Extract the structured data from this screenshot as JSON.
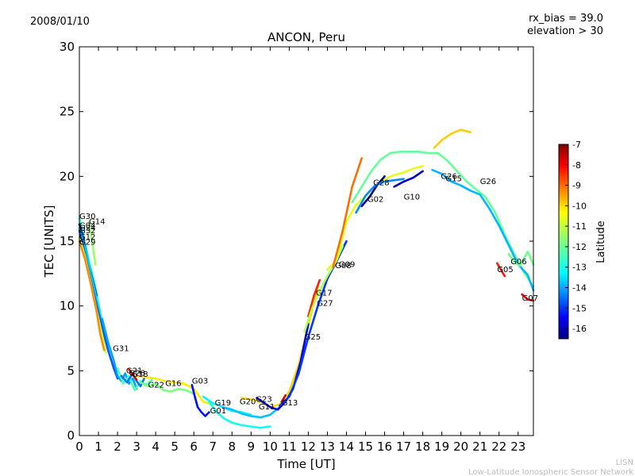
{
  "header": {
    "date": "2008/01/10",
    "rx_bias": "rx_bias = 39.0",
    "elevation": "elevation > 30"
  },
  "footer": {
    "short_name": "LISN",
    "long_name": "Low-Latitude Ionospheric Sensor Network"
  },
  "colors": {
    "colormap": [
      "#00007f",
      "#0000ff",
      "#007fff",
      "#00ffff",
      "#7fff7f",
      "#ffff00",
      "#ff7f00",
      "#ff0000",
      "#7f0000"
    ],
    "footer_text": "#bbbbbb"
  },
  "chart_data": {
    "type": "line",
    "title": "ANCON, Peru",
    "xlabel": "Time [UT]",
    "ylabel": "TEC [UNITS]",
    "xlim": [
      0,
      23.8
    ],
    "ylim": [
      0,
      30
    ],
    "xticks": [
      0,
      1,
      2,
      3,
      4,
      5,
      6,
      7,
      8,
      9,
      10,
      11,
      12,
      13,
      14,
      15,
      16,
      17,
      18,
      19,
      20,
      21,
      22,
      23
    ],
    "yticks": [
      0,
      5,
      10,
      15,
      20,
      25,
      30
    ],
    "colorbar": {
      "label": "Latitude",
      "min": -16.5,
      "max": -7,
      "ticks": [
        -7,
        -8,
        -9,
        -10,
        -11,
        -12,
        -13,
        -14,
        -15,
        -16
      ]
    },
    "series": [
      {
        "name": "G30",
        "lat": -12.5,
        "label_at": [
          0,
          16.9
        ],
        "x": [
          0,
          0.2,
          0.5,
          0.8,
          1.0,
          1.2,
          1.5
        ],
        "y": [
          16.8,
          15.5,
          13.5,
          11.8,
          10.2,
          8.6,
          6.9
        ]
      },
      {
        "name": "G04",
        "lat": -15.8,
        "label_at": [
          0,
          16.2
        ],
        "x": [
          0,
          0.2,
          0.5,
          0.8,
          0.9
        ],
        "y": [
          16.3,
          15.2,
          13.1,
          11.4,
          10.8
        ]
      },
      {
        "name": "G14",
        "lat": -11.5,
        "label_at": [
          0.5,
          16.5
        ],
        "x": [
          0.5,
          0.6,
          0.7,
          0.85
        ],
        "y": [
          16.5,
          15.6,
          14.6,
          13.2
        ]
      },
      {
        "name": "G24",
        "lat": -13.2,
        "label_at": [
          0,
          16.0
        ],
        "x": [
          0,
          0.3,
          0.6,
          0.9,
          1.2
        ],
        "y": [
          16.0,
          14.4,
          12.4,
          10.6,
          8.8
        ]
      },
      {
        "name": "G32",
        "lat": -14.5,
        "label_at": [
          0,
          15.8
        ],
        "x": [
          0,
          0.3,
          0.6,
          0.9,
          1.2,
          1.5,
          1.8,
          2.0
        ],
        "y": [
          15.8,
          14.0,
          12.0,
          10.1,
          8.3,
          6.6,
          5.2,
          4.4
        ]
      },
      {
        "name": "G12",
        "lat": -11.0,
        "label_at": [
          0,
          15.3
        ],
        "x": [
          0,
          0.3,
          0.6,
          0.9,
          1.2,
          1.4
        ],
        "y": [
          15.3,
          13.8,
          11.8,
          9.7,
          7.7,
          6.4
        ]
      },
      {
        "name": "G29",
        "lat": -9.5,
        "label_at": [
          0,
          14.9
        ],
        "x": [
          0,
          0.3,
          0.6,
          0.9,
          1.1,
          1.3
        ],
        "y": [
          15.0,
          13.6,
          11.7,
          9.6,
          7.8,
          6.6
        ]
      },
      {
        "name": "G31",
        "lat": -13.8,
        "label_at": [
          1.75,
          6.7
        ],
        "x": [
          1.2,
          1.5,
          1.8,
          2.0,
          2.2,
          2.4,
          2.6,
          2.8,
          3.0
        ],
        "y": [
          9.0,
          7.2,
          5.8,
          4.6,
          4.2,
          4.8,
          4.0,
          4.4,
          3.6
        ]
      },
      {
        "name": "G21",
        "lat": -12.2,
        "label_at": [
          2.45,
          5.0
        ],
        "x": [
          2.0,
          2.3,
          2.6,
          2.9,
          3.2,
          3.5,
          3.8
        ],
        "y": [
          5.2,
          4.0,
          4.6,
          3.5,
          4.2,
          3.9,
          4.3
        ]
      },
      {
        "name": "G18",
        "lat": -14.2,
        "label_at": [
          2.75,
          4.7
        ],
        "x": [
          2.2,
          2.5,
          2.8,
          3.0,
          3.2,
          3.4
        ],
        "y": [
          4.6,
          4.1,
          4.8,
          4.2,
          3.8,
          4.4
        ]
      },
      {
        "name": "G28",
        "lat": -8.0,
        "label_at": [
          2.6,
          4.8
        ],
        "x": [
          2.6,
          2.8,
          3.0
        ],
        "y": [
          5.1,
          4.7,
          4.3
        ]
      },
      {
        "name": "G22",
        "lat": -10.4,
        "label_at": [
          3.6,
          3.9
        ],
        "x": [
          3.0,
          3.5,
          4.0,
          4.5,
          5.0,
          5.5,
          6.0,
          6.5,
          7.0
        ],
        "y": [
          4.6,
          4.5,
          4.4,
          4.2,
          4.1,
          4.0,
          3.6,
          2.6,
          2.4
        ]
      },
      {
        "name": "G16",
        "lat": -11.8,
        "label_at": [
          4.5,
          4.0
        ],
        "x": [
          3.2,
          3.6,
          4.0,
          4.4,
          4.8,
          5.2,
          5.6,
          6.0
        ],
        "y": [
          4.1,
          3.8,
          4.0,
          3.5,
          3.4,
          3.6,
          3.5,
          3.2
        ]
      },
      {
        "name": "G03",
        "lat": -15.2,
        "label_at": [
          5.9,
          4.2
        ],
        "x": [
          5.9,
          6.0,
          6.2,
          6.4,
          6.6,
          6.8
        ],
        "y": [
          3.9,
          3.3,
          2.2,
          1.8,
          1.5,
          1.8
        ]
      },
      {
        "name": "G19",
        "lat": -13.0,
        "label_at": [
          7.1,
          2.5
        ],
        "x": [
          6.5,
          7.0,
          7.5,
          8.0,
          8.5,
          9.0
        ],
        "y": [
          3.0,
          2.5,
          2.2,
          1.9,
          1.8,
          1.6
        ]
      },
      {
        "name": "G01",
        "lat": -12.8,
        "label_at": [
          6.85,
          1.9
        ],
        "x": [
          6.8,
          7.2,
          7.6,
          8.0,
          8.5,
          9.0,
          9.5,
          10.0
        ],
        "y": [
          2.6,
          1.8,
          1.3,
          1.0,
          0.8,
          0.7,
          0.6,
          0.7
        ]
      },
      {
        "name": "G20",
        "lat": -13.5,
        "label_at": [
          8.4,
          2.6
        ],
        "x": [
          7.5,
          8.0,
          8.5,
          9.0,
          9.5,
          10.0,
          10.5
        ],
        "y": [
          2.2,
          2.0,
          1.7,
          1.5,
          1.4,
          1.6,
          2.2
        ]
      },
      {
        "name": "G23",
        "lat": -10.2,
        "label_at": [
          9.25,
          2.8
        ],
        "x": [
          8.5,
          9.0,
          9.5,
          10.0,
          10.5,
          11.0,
          11.5,
          12.0,
          12.5
        ],
        "y": [
          2.9,
          2.8,
          2.6,
          2.2,
          2.4,
          3.4,
          5.5,
          8.5,
          11.5
        ]
      },
      {
        "name": "G11",
        "lat": -15.6,
        "label_at": [
          9.4,
          2.2
        ],
        "x": [
          9.3,
          9.6,
          10.0,
          10.4,
          10.8,
          11.2,
          11.6,
          12.0
        ],
        "y": [
          2.9,
          2.6,
          2.2,
          2.0,
          2.6,
          3.6,
          5.7,
          8.6
        ]
      },
      {
        "name": "G13",
        "lat": -7.8,
        "label_at": [
          10.6,
          2.5
        ],
        "x": [
          10.6,
          10.8
        ],
        "y": [
          2.6,
          3.1
        ]
      },
      {
        "name": "G25",
        "lat": -14.8,
        "label_at": [
          11.8,
          7.6
        ],
        "x": [
          10.5,
          11.0,
          11.5,
          12.0,
          12.5,
          13.0,
          13.5,
          14.0
        ],
        "y": [
          2.3,
          3.0,
          4.8,
          7.6,
          10.0,
          12.1,
          13.5,
          15.0
        ]
      },
      {
        "name": "G17",
        "lat": -8.5,
        "label_at": [
          12.4,
          11.0
        ],
        "x": [
          12.0,
          12.3,
          12.6
        ],
        "y": [
          9.2,
          10.8,
          12.0
        ]
      },
      {
        "name": "G27",
        "lat": -11.3,
        "label_at": [
          12.45,
          10.2
        ],
        "x": [
          11.8,
          12.2,
          12.6,
          13.0,
          13.4,
          13.8
        ],
        "y": [
          8.0,
          9.8,
          11.2,
          12.3,
          13.3,
          14.6
        ]
      },
      {
        "name": "G08",
        "lat": -10.8,
        "label_at": [
          13.4,
          13.1
        ],
        "x": [
          13.0,
          13.5,
          14.0,
          14.5,
          15.0,
          15.5,
          16.0,
          16.5,
          17.0,
          17.5,
          18.0
        ],
        "y": [
          12.8,
          13.6,
          16.5,
          17.8,
          18.5,
          19.2,
          19.8,
          20.1,
          20.3,
          20.6,
          20.8
        ]
      },
      {
        "name": "G09",
        "lat": -9.2,
        "label_at": [
          13.6,
          13.2
        ],
        "x": [
          13.3,
          13.8,
          14.3,
          14.8
        ],
        "y": [
          13.0,
          15.8,
          19.2,
          21.4
        ]
      },
      {
        "name": "G28",
        "lat": -16.3,
        "label_at": [
          15.4,
          19.5
        ],
        "x": [
          14.8,
          15.2,
          15.6,
          16.0
        ],
        "y": [
          17.7,
          18.4,
          19.3,
          20.0
        ]
      },
      {
        "name": "G02",
        "lat": -14.0,
        "label_at": [
          15.1,
          18.2
        ],
        "x": [
          14.5,
          15.0,
          15.5,
          16.0,
          16.5,
          17.0
        ],
        "y": [
          17.2,
          18.5,
          19.3,
          19.6,
          19.7,
          19.8
        ]
      },
      {
        "name": "G10",
        "lat": -15.9,
        "label_at": [
          17.0,
          18.4
        ],
        "x": [
          16.5,
          17.0,
          17.5,
          18.0
        ],
        "y": [
          19.2,
          19.6,
          19.9,
          20.4
        ]
      },
      {
        "name": "G26",
        "lat": -12.0,
        "label_at": [
          18.95,
          20.0
        ],
        "x": [
          14.3,
          14.8,
          15.3,
          15.8,
          16.3,
          16.8,
          17.3,
          17.8,
          18.3,
          18.8,
          19.3,
          19.8,
          20.3,
          20.8,
          21.3,
          21.8,
          22.3,
          22.8,
          23.3,
          23.8
        ],
        "y": [
          18.0,
          19.2,
          20.4,
          21.3,
          21.8,
          21.9,
          21.9,
          21.9,
          21.8,
          21.8,
          21.2,
          20.4,
          19.6,
          19.0,
          18.4,
          17.2,
          15.5,
          14.0,
          12.6,
          11.5
        ]
      },
      {
        "name": "G15",
        "lat": -13.6,
        "label_at": [
          19.2,
          19.8
        ],
        "x": [
          18.5,
          19.0,
          19.5,
          20.0,
          20.5,
          21.0,
          21.5,
          22.0,
          22.5,
          23.0,
          23.5,
          23.8
        ],
        "y": [
          20.5,
          20.2,
          19.6,
          19.3,
          18.9,
          18.6,
          17.5,
          16.2,
          14.7,
          13.2,
          12.4,
          11.2
        ]
      },
      {
        "name": "G26",
        "lat": -10.1,
        "label_at": [
          21.0,
          19.6
        ],
        "x": [
          18.6,
          19.0,
          19.5,
          20.0,
          20.5
        ],
        "y": [
          22.2,
          22.8,
          23.3,
          23.6,
          23.4
        ]
      },
      {
        "name": "G06",
        "lat": -11.9,
        "label_at": [
          22.6,
          13.4
        ],
        "x": [
          22.5,
          22.8,
          23.1,
          23.5,
          23.8
        ],
        "y": [
          14.0,
          13.4,
          13.1,
          14.2,
          13.2
        ]
      },
      {
        "name": "G07",
        "lat": -8.2,
        "label_at": [
          23.2,
          10.6
        ],
        "x": [
          23.2,
          23.5,
          23.8
        ],
        "y": [
          10.9,
          10.5,
          10.4
        ]
      },
      {
        "name": "G05",
        "lat": -8.4,
        "label_at": [
          21.9,
          12.8
        ],
        "x": [
          21.9,
          22.1,
          22.3
        ],
        "y": [
          13.3,
          12.8,
          12.3
        ]
      }
    ]
  }
}
